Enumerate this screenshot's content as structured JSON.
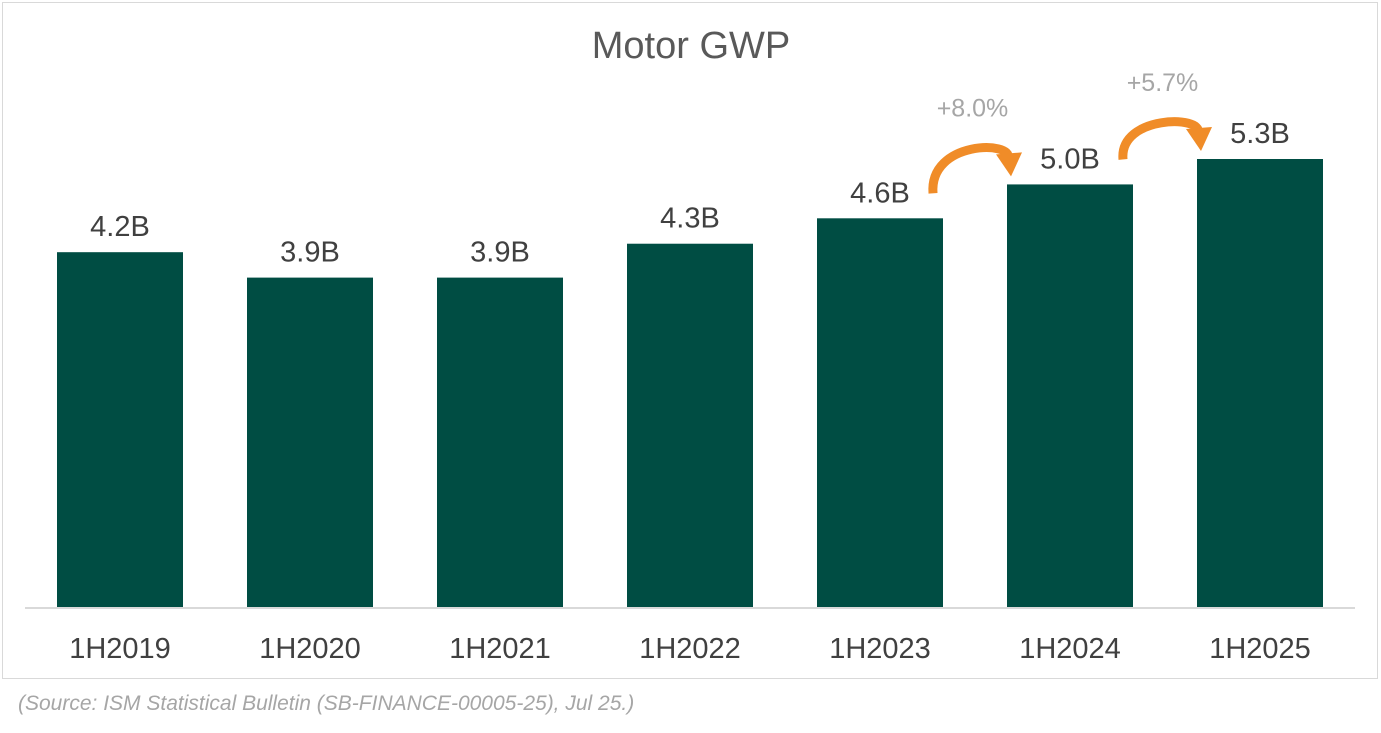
{
  "chart_data": {
    "type": "bar",
    "title": "Motor GWP",
    "categories": [
      "1H2019",
      "1H2020",
      "1H2021",
      "1H2022",
      "1H2023",
      "1H2024",
      "1H2025"
    ],
    "values": [
      4.2,
      3.9,
      3.9,
      4.3,
      4.6,
      5.0,
      5.3
    ],
    "data_labels": [
      "4.2B",
      "3.9B",
      "3.9B",
      "4.3B",
      "4.6B",
      "5.0B",
      "5.3B"
    ],
    "units": "B",
    "xlabel": "",
    "ylabel": "",
    "ylim": [
      0,
      5.3
    ],
    "grid": false,
    "annotations": [
      {
        "from": "1H2023",
        "to": "1H2024",
        "label": "+8.0%"
      },
      {
        "from": "1H2024",
        "to": "1H2025",
        "label": "+5.7%"
      }
    ],
    "colors": {
      "bar": "#004d43",
      "arrow": "#f08c28",
      "annotation_text": "#a6a6a6",
      "label_text": "#404040",
      "axis": "#d9d9d9"
    }
  },
  "source_note": "(Source: ISM Statistical Bulletin (SB-FINANCE-00005-25), Jul 25.)"
}
